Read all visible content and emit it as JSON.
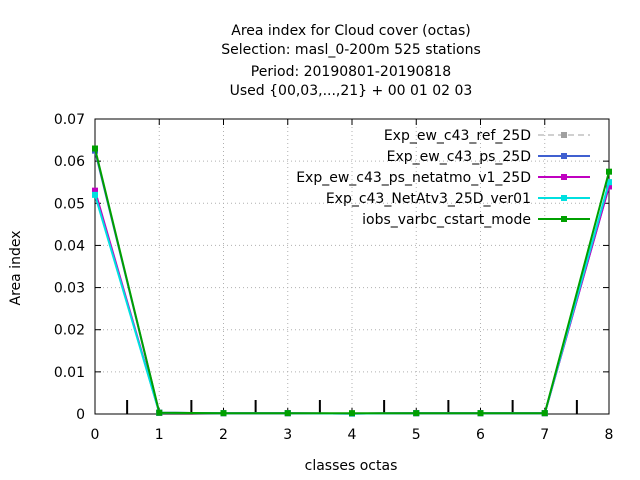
{
  "chart_data": {
    "type": "line",
    "title_lines": [
      "Area index  for Cloud cover (octas)",
      "Selection: masl_0-200m    525 stations",
      "Period: 20190801-20190818",
      "Used {00,03,...,21} + 00 01 02 03"
    ],
    "xlabel": "classes octas",
    "ylabel": "Area index",
    "xlim": [
      0,
      8
    ],
    "ylim": [
      0,
      0.07
    ],
    "xticks": [
      "0",
      "1",
      "2",
      "3",
      "4",
      "5",
      "6",
      "7",
      "8"
    ],
    "yticks": [
      "0",
      "0.01",
      "0.02",
      "0.03",
      "0.04",
      "0.05",
      "0.06",
      "0.07"
    ],
    "grid": true,
    "legend_position": "top-right",
    "x": [
      0,
      1,
      2,
      3,
      4,
      5,
      6,
      7,
      8
    ],
    "series": [
      {
        "name": "Exp_ew_c43_ref_25D",
        "color": "#a0a0a0",
        "dashed": true,
        "values": [
          0.0625,
          0.0003,
          0.0002,
          0.0002,
          0.0001,
          0.0002,
          0.0002,
          0.0002,
          0.055
        ]
      },
      {
        "name": "Exp_ew_c43_ps_25D",
        "color": "#4060d0",
        "dashed": false,
        "values": [
          0.0625,
          0.0003,
          0.0002,
          0.0002,
          0.0001,
          0.0002,
          0.0002,
          0.0002,
          0.054
        ]
      },
      {
        "name": "Exp_ew_c43_ps_netatmo_v1_25D",
        "color": "#c000c0",
        "dashed": false,
        "values": [
          0.053,
          0.0003,
          0.0002,
          0.0002,
          0.0001,
          0.0002,
          0.0002,
          0.0002,
          0.054
        ]
      },
      {
        "name": "Exp_c43_NetAtv3_25D_ver01",
        "color": "#00e0e0",
        "dashed": false,
        "values": [
          0.052,
          0.0003,
          0.0002,
          0.0002,
          0.0001,
          0.0002,
          0.0002,
          0.0002,
          0.055
        ]
      },
      {
        "name": "iobs_varbc_cstart_mode",
        "color": "#00a000",
        "dashed": false,
        "values": [
          0.063,
          0.0003,
          0.0002,
          0.0002,
          0.0002,
          0.0002,
          0.0002,
          0.0002,
          0.0575
        ]
      }
    ],
    "bar_markers_x": [
      0.5,
      1.5,
      2.5,
      3.5,
      4.5,
      5.5,
      6.5,
      7.5
    ]
  }
}
